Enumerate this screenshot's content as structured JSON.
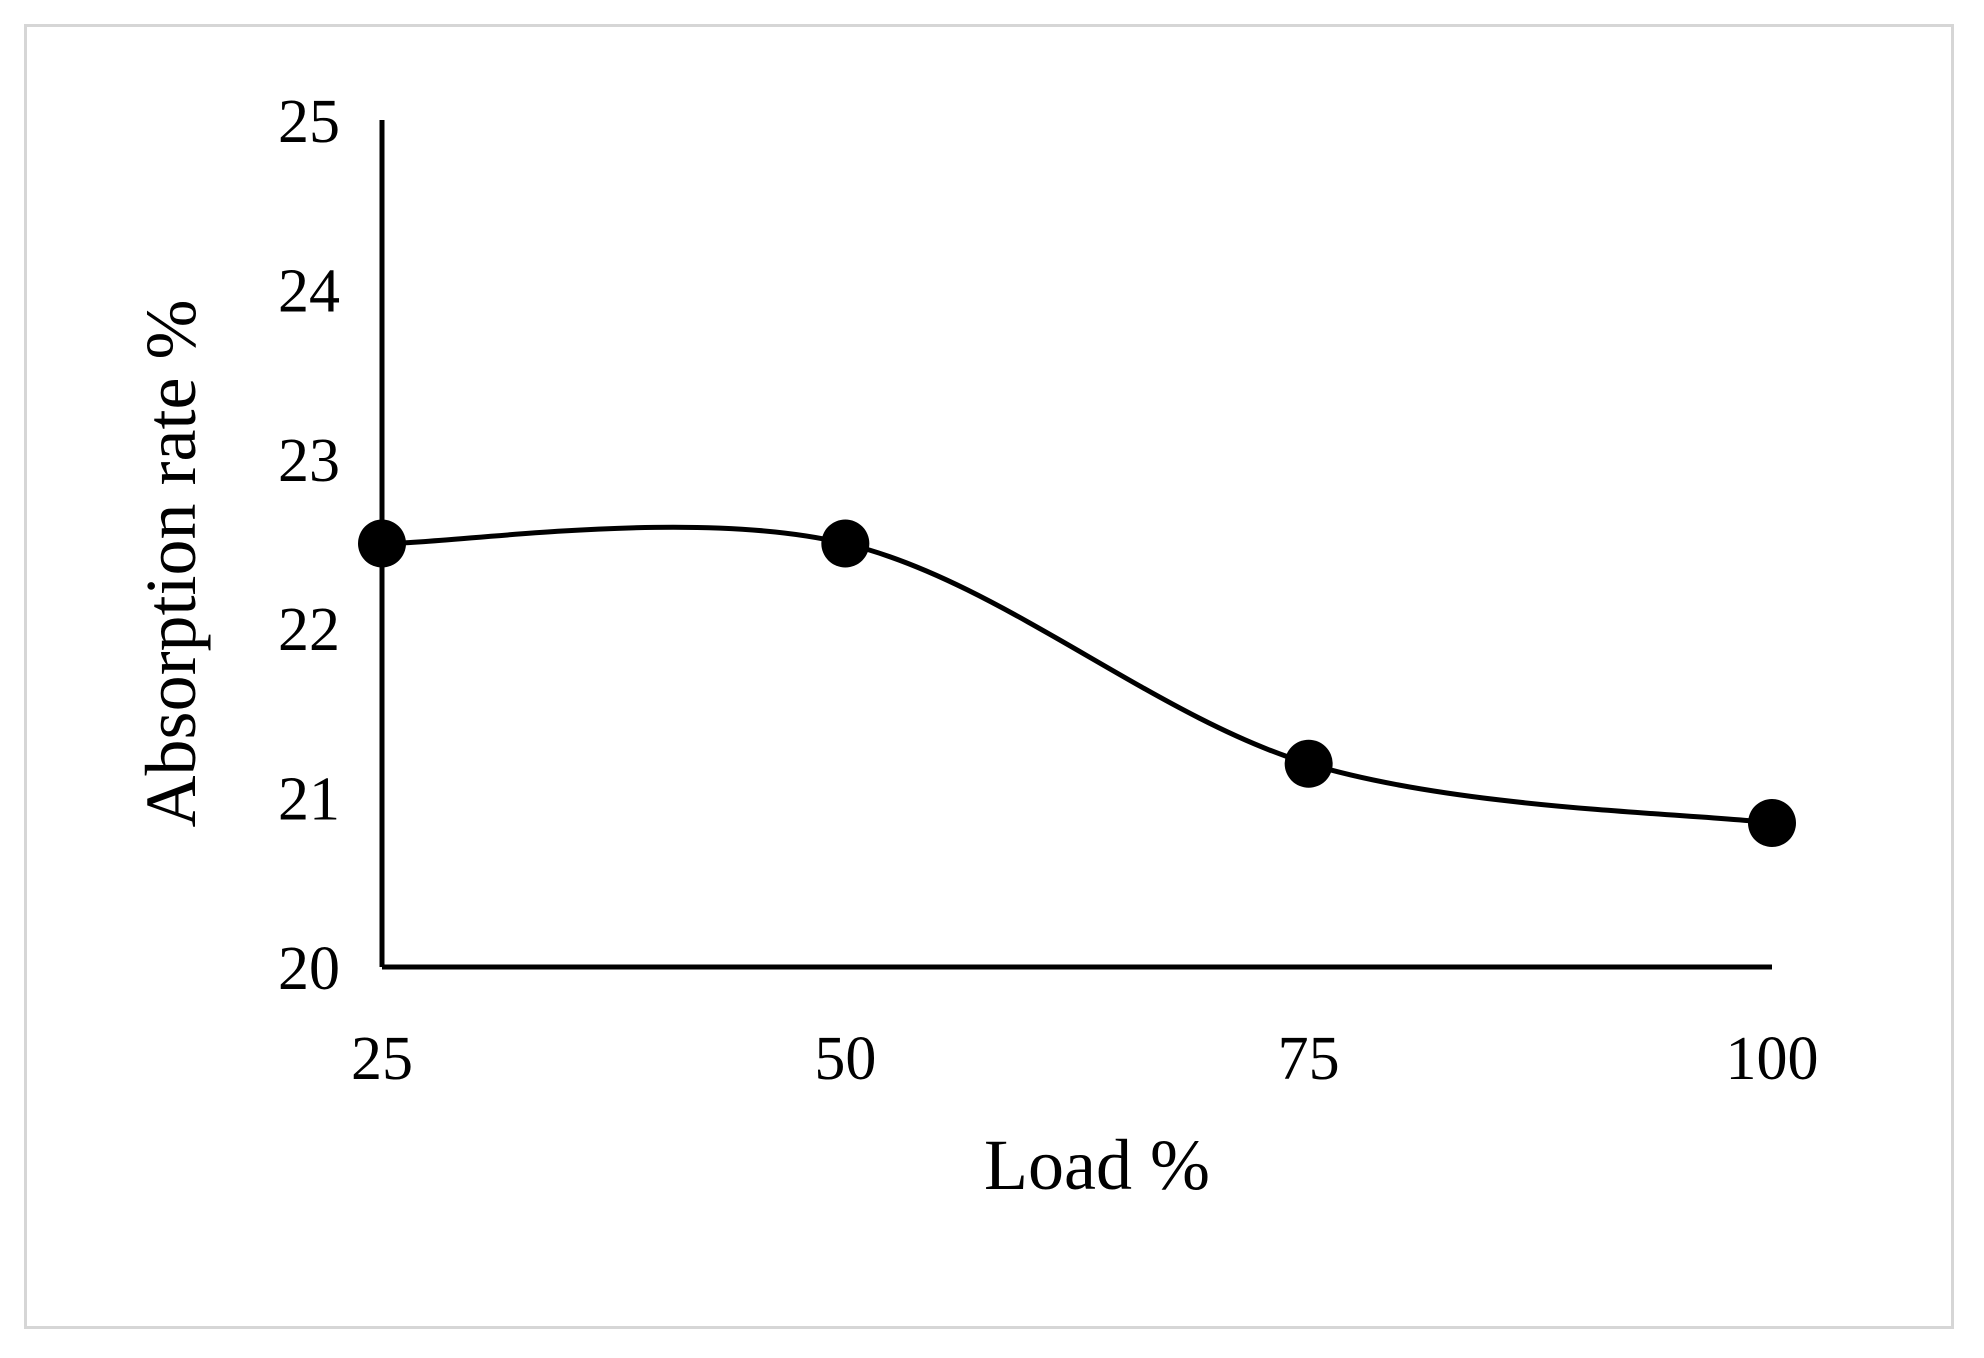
{
  "chart_data": {
    "type": "line",
    "title": "",
    "xlabel": "Load %",
    "ylabel": "Absorption rate %",
    "x": [
      25,
      50,
      75,
      100
    ],
    "x_ticks": [
      "25",
      "50",
      "75",
      "100"
    ],
    "y_ticks": [
      "20",
      "21",
      "22",
      "23",
      "24",
      "25"
    ],
    "xlim": [
      25,
      100
    ],
    "ylim": [
      20,
      25
    ],
    "grid": false,
    "legend": "none",
    "smooth": true,
    "series": [
      {
        "values": [
          22.5,
          22.5,
          21.2,
          20.85
        ],
        "color": "#000000",
        "marker": "circle"
      }
    ]
  }
}
